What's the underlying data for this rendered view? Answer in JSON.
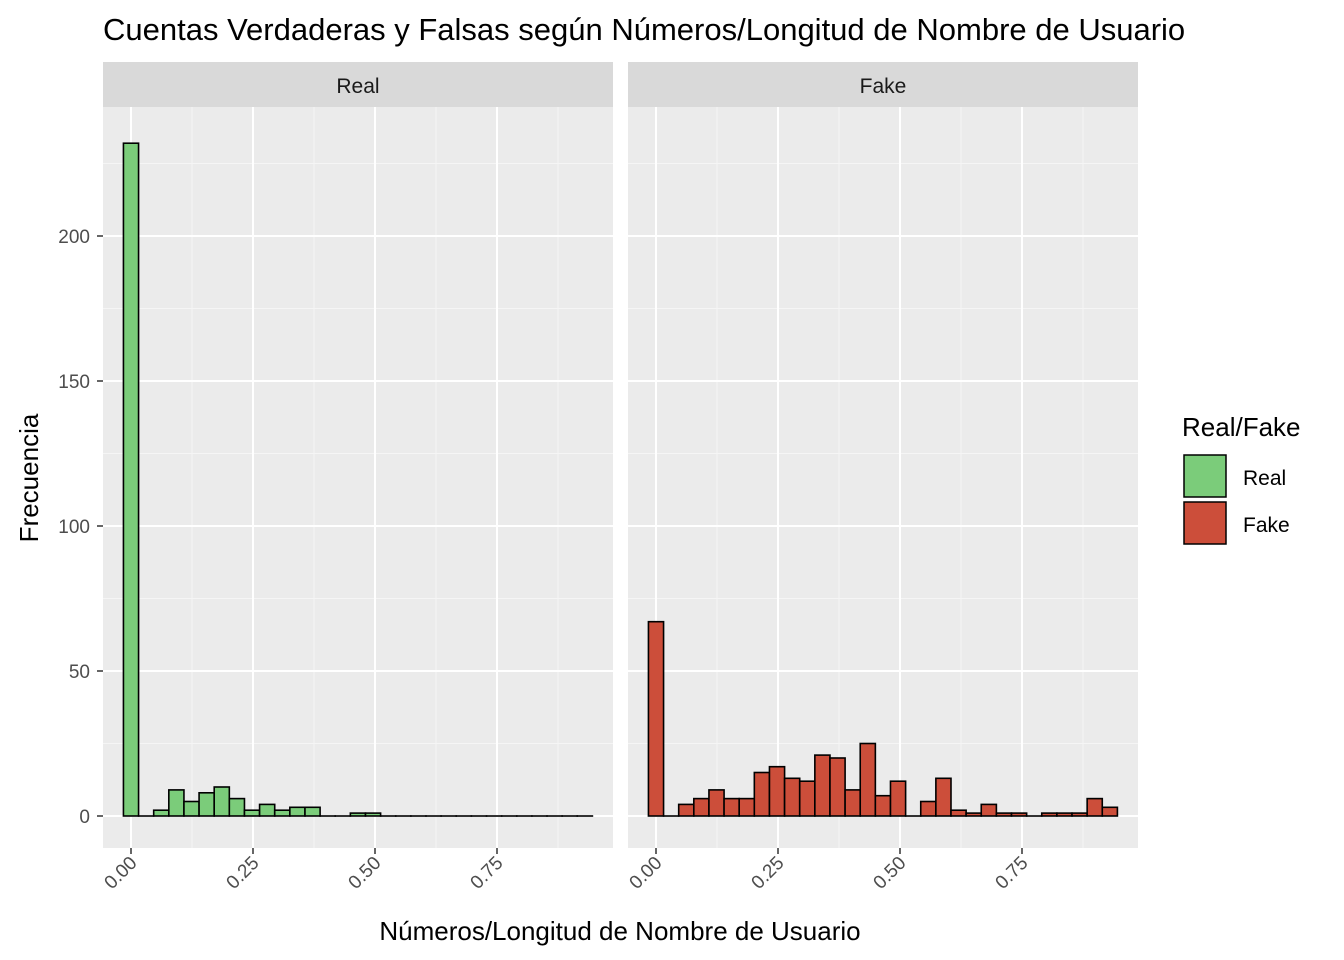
{
  "chart_data": {
    "type": "bar",
    "title": "Cuentas Verdaderas y Falsas según Números/Longitud de Nombre de Usuario",
    "xlabel": "Números/Longitud de Nombre de Usuario",
    "ylabel": "Frecuencia",
    "xlim": [
      -0.06,
      0.99
    ],
    "ylim": [
      -11,
      253
    ],
    "x_ticks": [
      0.0,
      0.25,
      0.5,
      0.75
    ],
    "x_tick_labels": [
      "0.00",
      "0.25",
      "0.50",
      "0.75"
    ],
    "y_ticks": [
      0,
      50,
      100,
      150,
      200
    ],
    "y_tick_labels": [
      "0",
      "50",
      "100",
      "150",
      "200"
    ],
    "bin_width": 0.031,
    "bin_centers": [
      0.0,
      0.031,
      0.062,
      0.093,
      0.124,
      0.155,
      0.186,
      0.217,
      0.248,
      0.279,
      0.31,
      0.341,
      0.372,
      0.403,
      0.434,
      0.465,
      0.496,
      0.527,
      0.558,
      0.589,
      0.62,
      0.651,
      0.682,
      0.713,
      0.744,
      0.775,
      0.806,
      0.837,
      0.868,
      0.899,
      0.93
    ],
    "grid": true,
    "legend": {
      "title": "Real/Fake",
      "position": "right",
      "items": [
        {
          "label": "Real",
          "color": "#7bcc7a"
        },
        {
          "label": "Fake",
          "color": "#cc4e3a"
        }
      ]
    },
    "panels": [
      {
        "strip": "Real",
        "color": "#7bcc7a",
        "values": [
          232,
          0,
          2,
          9,
          5,
          8,
          10,
          6,
          2,
          4,
          2,
          3,
          3,
          0,
          0,
          1,
          1,
          0,
          0,
          0,
          0,
          0,
          0,
          0,
          0,
          0,
          0,
          0,
          0,
          0,
          0
        ]
      },
      {
        "strip": "Fake",
        "color": "#cc4e3a",
        "values": [
          67,
          0,
          4,
          6,
          9,
          6,
          6,
          15,
          17,
          13,
          12,
          21,
          20,
          9,
          25,
          7,
          12,
          0,
          5,
          13,
          2,
          1,
          4,
          1,
          1,
          0,
          1,
          1,
          1,
          6,
          3
        ]
      }
    ]
  },
  "colors": {
    "panel_background": "#ebebeb",
    "strip_background": "#d9d9d9",
    "grid_major": "#ffffff",
    "bar_outline": "#000000"
  }
}
